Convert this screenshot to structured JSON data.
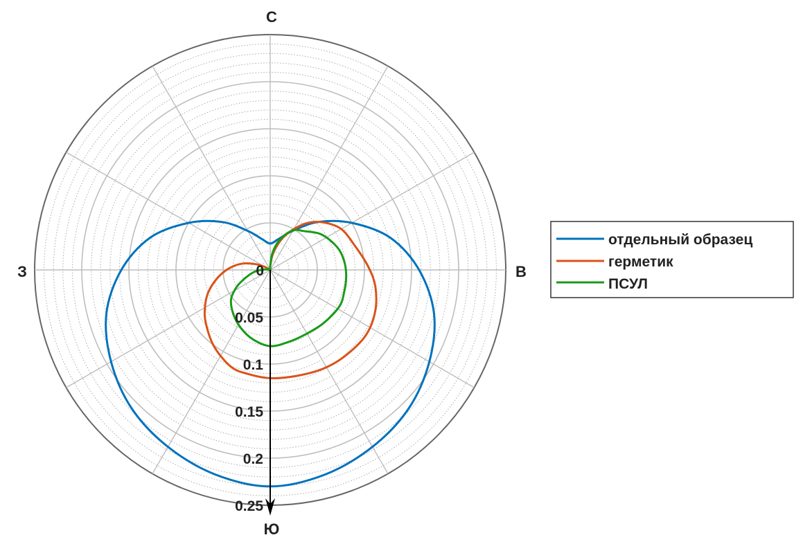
{
  "chart_data": {
    "type": "polar-line",
    "direction_labels": {
      "north": "С",
      "east": "В",
      "south": "Ю",
      "west": "З"
    },
    "angle_convention": "compass degrees, 0 = north, clockwise",
    "rlim": [
      0,
      0.25
    ],
    "r_ticks": [
      "0",
      "0.05",
      "0.1",
      "0.15",
      "0.2",
      "0.25"
    ],
    "r_tick_values": [
      0,
      0.05,
      0.1,
      0.15,
      0.2,
      0.25
    ],
    "major_r_step": 0.05,
    "minor_r_step": 0.01,
    "theta_grid_step_deg": 30,
    "grid": true,
    "legend_position": "right",
    "series": [
      {
        "name": "отдельный образец",
        "color": "#0072bd",
        "points": [
          [
            0,
            0.028
          ],
          [
            15,
            0.034
          ],
          [
            30,
            0.048
          ],
          [
            45,
            0.072
          ],
          [
            60,
            0.1
          ],
          [
            75,
            0.132
          ],
          [
            90,
            0.158
          ],
          [
            105,
            0.18
          ],
          [
            120,
            0.195
          ],
          [
            135,
            0.208
          ],
          [
            150,
            0.217
          ],
          [
            165,
            0.225
          ],
          [
            180,
            0.23
          ],
          [
            195,
            0.225
          ],
          [
            210,
            0.217
          ],
          [
            225,
            0.208
          ],
          [
            240,
            0.195
          ],
          [
            255,
            0.18
          ],
          [
            270,
            0.158
          ],
          [
            285,
            0.132
          ],
          [
            300,
            0.1
          ],
          [
            315,
            0.072
          ],
          [
            330,
            0.048
          ],
          [
            345,
            0.034
          ]
        ]
      },
      {
        "name": "герметик",
        "color": "#d95319",
        "points": [
          [
            0,
            0.004
          ],
          [
            10,
            0.018
          ],
          [
            20,
            0.034
          ],
          [
            28,
            0.047
          ],
          [
            38,
            0.063
          ],
          [
            48,
            0.0755
          ],
          [
            60,
            0.087
          ],
          [
            75,
            0.094
          ],
          [
            88,
            0.104
          ],
          [
            99,
            0.113
          ],
          [
            112,
            0.12
          ],
          [
            125,
            0.123
          ],
          [
            140,
            0.121
          ],
          [
            152,
            0.119
          ],
          [
            166,
            0.116
          ],
          [
            180,
            0.115
          ],
          [
            192,
            0.113
          ],
          [
            202,
            0.111
          ],
          [
            216,
            0.101
          ],
          [
            230,
            0.089
          ],
          [
            240,
            0.08
          ],
          [
            250,
            0.07
          ],
          [
            261,
            0.057
          ],
          [
            272,
            0.044
          ],
          [
            283,
            0.03
          ],
          [
            292,
            0.016
          ],
          [
            300,
            0.006
          ],
          [
            310,
            0.0
          ]
        ]
      },
      {
        "name": "ПСУЛ",
        "color": "#1a9a1a",
        "points": [
          [
            0,
            0.004
          ],
          [
            7,
            0.017
          ],
          [
            15,
            0.03
          ],
          [
            24,
            0.042
          ],
          [
            32,
            0.05
          ],
          [
            40,
            0.054
          ],
          [
            55,
            0.066
          ],
          [
            71,
            0.075
          ],
          [
            83,
            0.079
          ],
          [
            95,
            0.081
          ],
          [
            107,
            0.082
          ],
          [
            118,
            0.083
          ],
          [
            135,
            0.08
          ],
          [
            152,
            0.078
          ],
          [
            166,
            0.079
          ],
          [
            180,
            0.081
          ],
          [
            194,
            0.076
          ],
          [
            207,
            0.069
          ],
          [
            220,
            0.061
          ],
          [
            233,
            0.052
          ],
          [
            243,
            0.04
          ],
          [
            251,
            0.029
          ],
          [
            262,
            0.018
          ],
          [
            270,
            0.01
          ],
          [
            282,
            0.003
          ],
          [
            295,
            0.0
          ]
        ]
      }
    ]
  }
}
